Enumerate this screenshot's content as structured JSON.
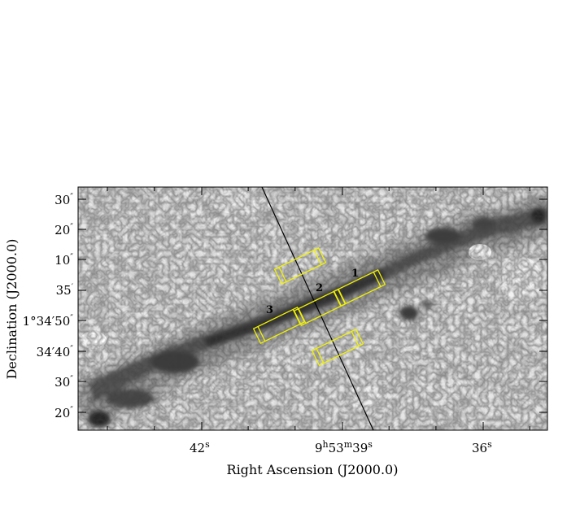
{
  "figure": {
    "colors": {
      "slit": "#f2f200",
      "axis_line": "#000000",
      "background": "#ffffff"
    },
    "axes": {
      "x_title": "Right Ascension (J2000.0)",
      "y_title": "Declination (J2000.0)",
      "x_ticks": [
        {
          "main": "42",
          "sup": "s",
          "pre": "",
          "pre_sup": "",
          "mid": "",
          "mid_sup": ""
        },
        {
          "pre": "9",
          "pre_sup": "h",
          "mid": "53",
          "mid_sup": "m",
          "main": "39",
          "sup": "s"
        },
        {
          "main": "36",
          "sup": "s",
          "pre": "",
          "pre_sup": "",
          "mid": "",
          "mid_sup": ""
        }
      ],
      "y_ticks": [
        {
          "text": "30",
          "mark": "″"
        },
        {
          "text": "20",
          "mark": "″"
        },
        {
          "text": "10",
          "mark": "″"
        },
        {
          "text": "35",
          "mark": "′"
        },
        {
          "text": "1°34′50",
          "mark": "″"
        },
        {
          "text": "34′40",
          "mark": "″"
        },
        {
          "text": "30",
          "mark": "″"
        },
        {
          "text": "20",
          "mark": "″"
        }
      ]
    },
    "slits": [
      {
        "label": "1"
      },
      {
        "label": "2"
      },
      {
        "label": "3"
      }
    ]
  }
}
